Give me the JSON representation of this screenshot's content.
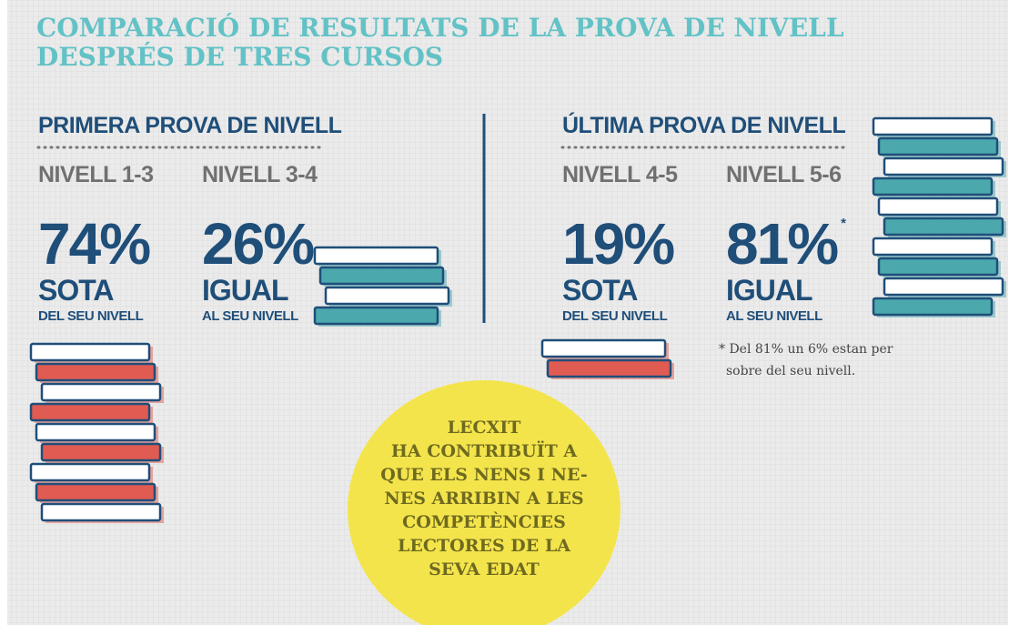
{
  "header": {
    "title_lines": [
      "COMPARACIÓ DE RESULTATS DE LA PROVA DE NIVELL",
      "DESPRÉS DE TRES CURSOS"
    ]
  },
  "sections": [
    {
      "title": "PRIMERA PROVA DE NIVELL",
      "groups": [
        {
          "level": "NIVELL 1-3",
          "value": "74%",
          "label": "SOTA",
          "sublabel": "DEL SEU NIVELL"
        },
        {
          "level": "NIVELL 3-4",
          "value": "26%",
          "label": "IGUAL",
          "sublabel": "AL SEU NIVELL"
        }
      ]
    },
    {
      "title": "ÚLTIMA PROVA DE NIVELL",
      "groups": [
        {
          "level": "NIVELL 4-5",
          "value": "19%",
          "label": "SOTA",
          "sublabel": "DEL SEU NIVELL"
        },
        {
          "level": "NIVELL 5-6",
          "value": "81%",
          "footnote_mark": "*",
          "label": "IGUAL",
          "sublabel": "AL SEU NIVELL"
        }
      ]
    }
  ],
  "footnote": [
    "* Del 81% un 6% estan per",
    "sobre del seu nivell."
  ],
  "callout": {
    "lines": [
      "LECXIT",
      "HA CONTRIBUÏT A",
      "QUE ELS NENS I NE-",
      "NES ARRIBIN A LES",
      "COMPETÈNCIES",
      "LECTORES DE LA",
      "SEVA EDAT"
    ]
  }
}
